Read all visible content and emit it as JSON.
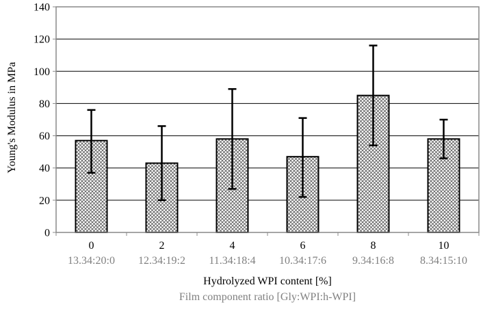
{
  "chart_data": {
    "type": "bar",
    "categories": [
      "0",
      "2",
      "4",
      "6",
      "8",
      "10"
    ],
    "subcategories": [
      "13.34:20:0",
      "12.34:19:2",
      "11.34:18:4",
      "10.34:17:6",
      "9.34:16:8",
      "8.34:15:10"
    ],
    "values": [
      57,
      43,
      58,
      47,
      85,
      58
    ],
    "error_low": [
      37,
      20,
      27,
      22,
      54,
      46
    ],
    "error_high": [
      76,
      66,
      89,
      71,
      116,
      70
    ],
    "xlabel": "Hydrolyzed WPI content [%]",
    "xlabel2": "Film component ratio [Gly:WPI:h-WPI]",
    "ylabel": "Young's Modulus in MPa",
    "ylim": [
      0,
      140
    ],
    "yticks": [
      "0",
      "20",
      "40",
      "60",
      "80",
      "100",
      "120",
      "140"
    ],
    "grid": true,
    "legend": "none",
    "bar_pattern": "crosshatch"
  },
  "colors": {
    "bar_fill": "#ffffff",
    "hatch": "#555555",
    "axis": "#888888",
    "grid": "#000000",
    "subcategory_text": "#808080",
    "text": "#000000"
  }
}
